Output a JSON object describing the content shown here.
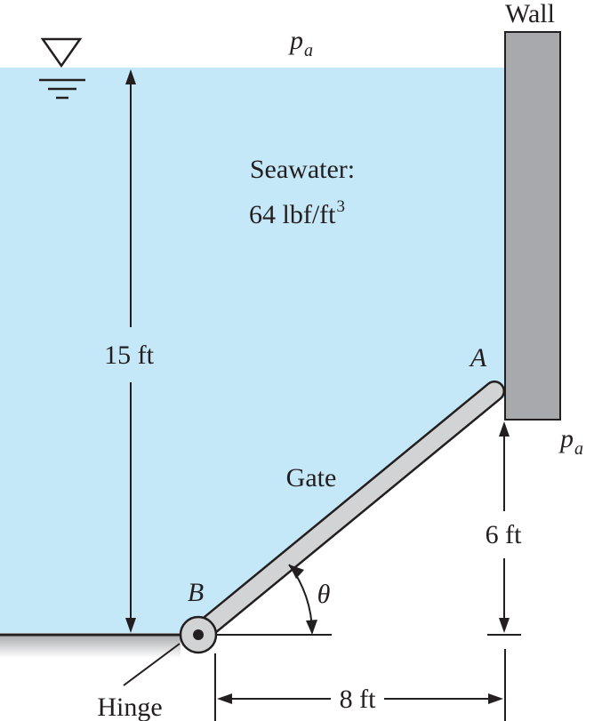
{
  "labels": {
    "wall": "Wall",
    "pa_top": "p",
    "pa_top_sub": "a",
    "pa_right": "p",
    "pa_right_sub": "a",
    "fluid_name": "Seawater:",
    "fluid_weight": "64 lbf/ft",
    "fluid_weight_exp": "3",
    "depth": "15 ft",
    "point_a": "A",
    "point_b": "B",
    "gate": "Gate",
    "hinge": "Hinge",
    "theta": "θ",
    "height_a": "6 ft",
    "horizontal": "8 ft"
  },
  "colors": {
    "water": "#c5e8f8",
    "wall": "#a7a9ac",
    "gate_fill": "#d1d3d4",
    "ground": "#bcbec0",
    "ink": "#231f20"
  }
}
